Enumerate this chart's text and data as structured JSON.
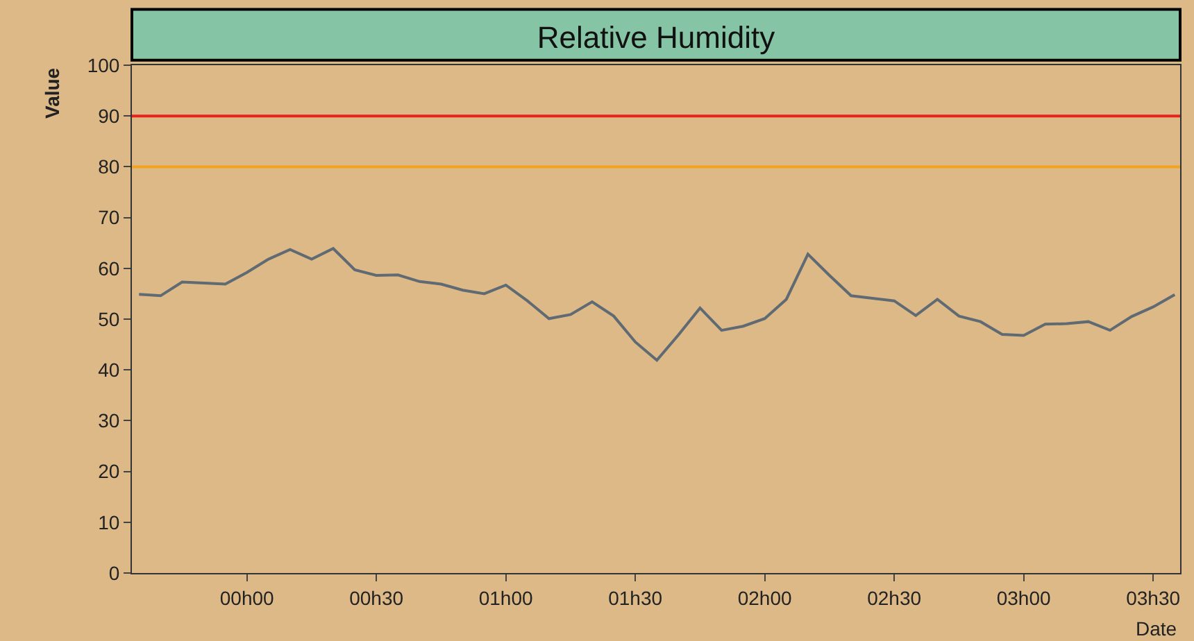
{
  "chart_data": {
    "type": "line",
    "title": "Relative Humidity",
    "xlabel": "Date",
    "ylabel": "Value",
    "categories": [
      null,
      null,
      null,
      null,
      null,
      "00h00",
      null,
      null,
      null,
      null,
      null,
      "00h30",
      null,
      null,
      null,
      null,
      null,
      "01h00",
      null,
      null,
      null,
      null,
      null,
      "01h30",
      null,
      null,
      null,
      null,
      null,
      "02h00",
      null,
      null,
      null,
      null,
      null,
      "02h30",
      null,
      null,
      null,
      null,
      null,
      "03h00",
      null,
      null,
      null,
      null,
      null,
      "03h30",
      null
    ],
    "series": [
      {
        "color": "#5f6a72",
        "values": [
          54.9,
          54.6,
          57.3,
          57.1,
          56.9,
          59.2,
          61.8,
          63.7,
          61.8,
          63.9,
          59.7,
          58.6,
          58.7,
          57.4,
          56.9,
          55.7,
          55.0,
          56.7,
          53.6,
          50.1,
          50.9,
          53.4,
          50.6,
          45.5,
          41.9,
          46.9,
          52.2,
          47.8,
          48.6,
          50.1,
          53.9,
          62.8,
          58.6,
          54.6,
          54.1,
          53.6,
          50.7,
          53.9,
          50.6,
          49.5,
          47.0,
          46.8,
          49.0,
          49.1,
          49.5,
          47.8,
          50.5,
          52.4,
          54.8
        ]
      }
    ],
    "ylim": [
      0,
      100
    ],
    "yticks": [
      0,
      10,
      20,
      30,
      40,
      50,
      60,
      70,
      80,
      90,
      100
    ],
    "ref_lines": [
      {
        "axis": "y",
        "value": 90,
        "color": "#e8221a"
      },
      {
        "axis": "y",
        "value": 80,
        "color": "#f5a21f"
      }
    ],
    "grid": false,
    "legend": false,
    "marker": "none",
    "line_style": "solid"
  }
}
